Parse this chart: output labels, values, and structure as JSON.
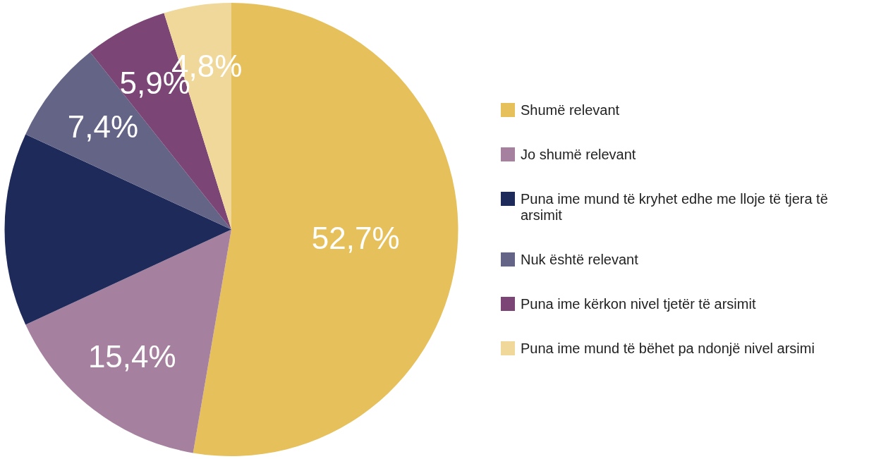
{
  "chart_data": {
    "type": "pie",
    "categories": [
      "Shumë relevant",
      "Jo shumë relevant",
      "Puna ime mund të kryhet edhe me lloje të tjera të arsimit",
      "Nuk është relevant",
      "Puna ime kërkon nivel tjetër të arsimit",
      "Puna ime mund të bëhet pa ndonjë nivel arsimi"
    ],
    "values": [
      52.7,
      15.4,
      13.8,
      7.4,
      5.9,
      4.8
    ],
    "value_labels": [
      "52,7%",
      "15,4%",
      null,
      "7,4%",
      "5,9%",
      "4,8%"
    ],
    "colors": [
      "#e6c05a",
      "#a6819f",
      "#1e2a5a",
      "#646487",
      "#7b4675",
      "#f0d89a"
    ],
    "legend": "right"
  }
}
